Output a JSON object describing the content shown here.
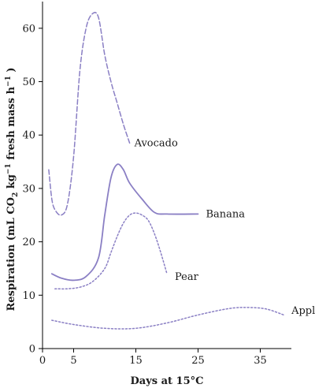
{
  "chart_data": {
    "type": "line",
    "title": "",
    "xlabel": "Days at 15°C",
    "ylabel_parts": {
      "pre": "Respiration (mL CO",
      "sub": "2",
      "mid": " kg",
      "sup": "−1",
      "mid2": " fresh mass h",
      "sup2": "−1",
      "post": " )"
    },
    "xlim": [
      0,
      40
    ],
    "ylim": [
      0,
      65
    ],
    "xticks": [
      0,
      5,
      15,
      25,
      35
    ],
    "yticks": [
      0,
      10,
      20,
      30,
      40,
      50,
      60
    ],
    "grid": false,
    "legend": "none",
    "line_color": "#8a7fc4",
    "series": [
      {
        "name": "Avocado",
        "style": "dashed",
        "x": [
          1,
          1.5,
          2,
          3,
          4,
          5,
          6,
          7,
          8,
          9,
          10,
          11,
          12,
          13,
          14
        ],
        "y": [
          33.5,
          28,
          26,
          25,
          27,
          36,
          52,
          60,
          62.7,
          62,
          55,
          50,
          46,
          42,
          38.5
        ]
      },
      {
        "name": "Banana",
        "style": "solid",
        "x": [
          1.5,
          3,
          5,
          7,
          9,
          10,
          11,
          12,
          13,
          14,
          16,
          18,
          20,
          25
        ],
        "y": [
          14,
          13.2,
          12.8,
          13.5,
          17,
          25,
          32,
          34.5,
          33.5,
          31,
          28,
          25.5,
          25.2,
          25.2
        ]
      },
      {
        "name": "Pear",
        "style": "dotted",
        "x": [
          2,
          4,
          6,
          8,
          10,
          11,
          12,
          13,
          14,
          15,
          16,
          17,
          18,
          19,
          20
        ],
        "y": [
          11.2,
          11.2,
          11.5,
          12.5,
          15,
          18,
          21,
          23.5,
          25,
          25.4,
          25,
          24,
          21.5,
          18,
          14
        ]
      },
      {
        "name": "Apple",
        "style": "dotted",
        "x": [
          1.5,
          5,
          10,
          15,
          20,
          25,
          30,
          33,
          36,
          39
        ],
        "y": [
          5.3,
          4.5,
          3.8,
          3.8,
          4.8,
          6.3,
          7.5,
          7.7,
          7.4,
          6.2
        ]
      }
    ]
  }
}
